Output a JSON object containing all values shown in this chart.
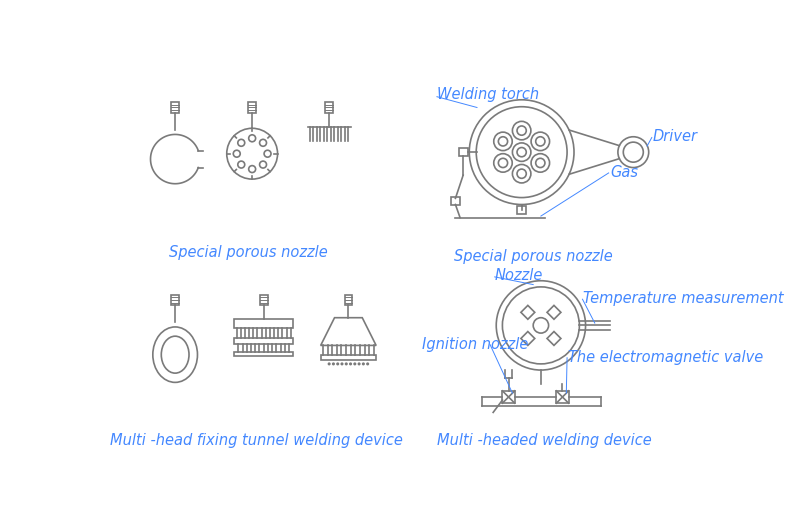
{
  "bg_color": "#ffffff",
  "line_color": "#7a7a7a",
  "text_color": "#4488ff",
  "lw": 1.2,
  "labels": {
    "top_left": "Special porous nozzle",
    "top_right": "Special porous nozzle",
    "bot_left": "Multi -head fixing tunnel welding device",
    "bot_right": "Multi -headed welding device",
    "welding_torch": "Welding torch",
    "driver": "Driver",
    "gas": "Gas",
    "nozzle": "Nozzle",
    "temperature": "Temperature measurement",
    "ignition": "Ignition nozzle",
    "electromagnetic": "The electromagnetic valve"
  },
  "label_fs": 10.5
}
